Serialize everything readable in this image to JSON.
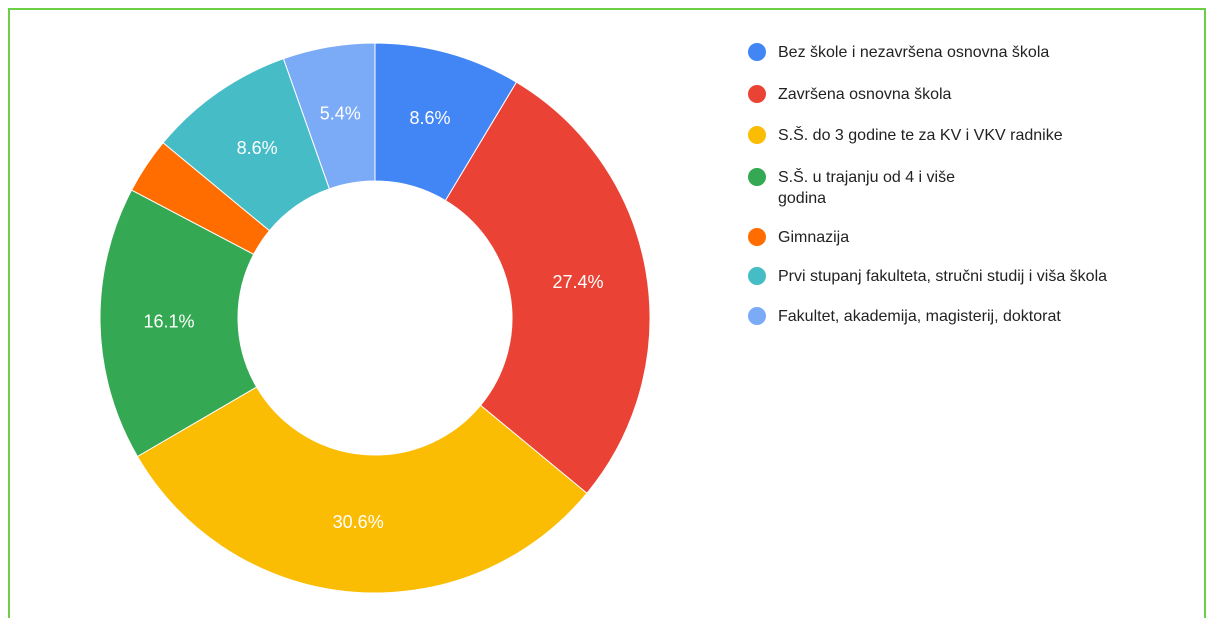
{
  "chart_data": {
    "type": "donut",
    "categories": [
      "Bez škole i nezavršena osnovna škola",
      "Završena osnovna škola",
      "S.Š. do 3 godine te za KV i VKV radnike",
      "S.Š. u trajanju od 4 i više godina",
      "Gimnazija",
      "Prvi stupanj fakulteta, stručni studij i viša škola",
      "Fakultet, akademija, magisterij, doktorat"
    ],
    "values": [
      8.6,
      27.4,
      30.6,
      16.1,
      3.3,
      8.6,
      5.4
    ],
    "value_labels": [
      "8.6%",
      "27.4%",
      "30.6%",
      "16.1%",
      null,
      "8.6%",
      "5.4%"
    ],
    "colors": [
      "#4285f4",
      "#ea4335",
      "#fbbc04",
      "#34a853",
      "#ff6d01",
      "#46bdc6",
      "#7baaf7"
    ],
    "legend": "right"
  }
}
